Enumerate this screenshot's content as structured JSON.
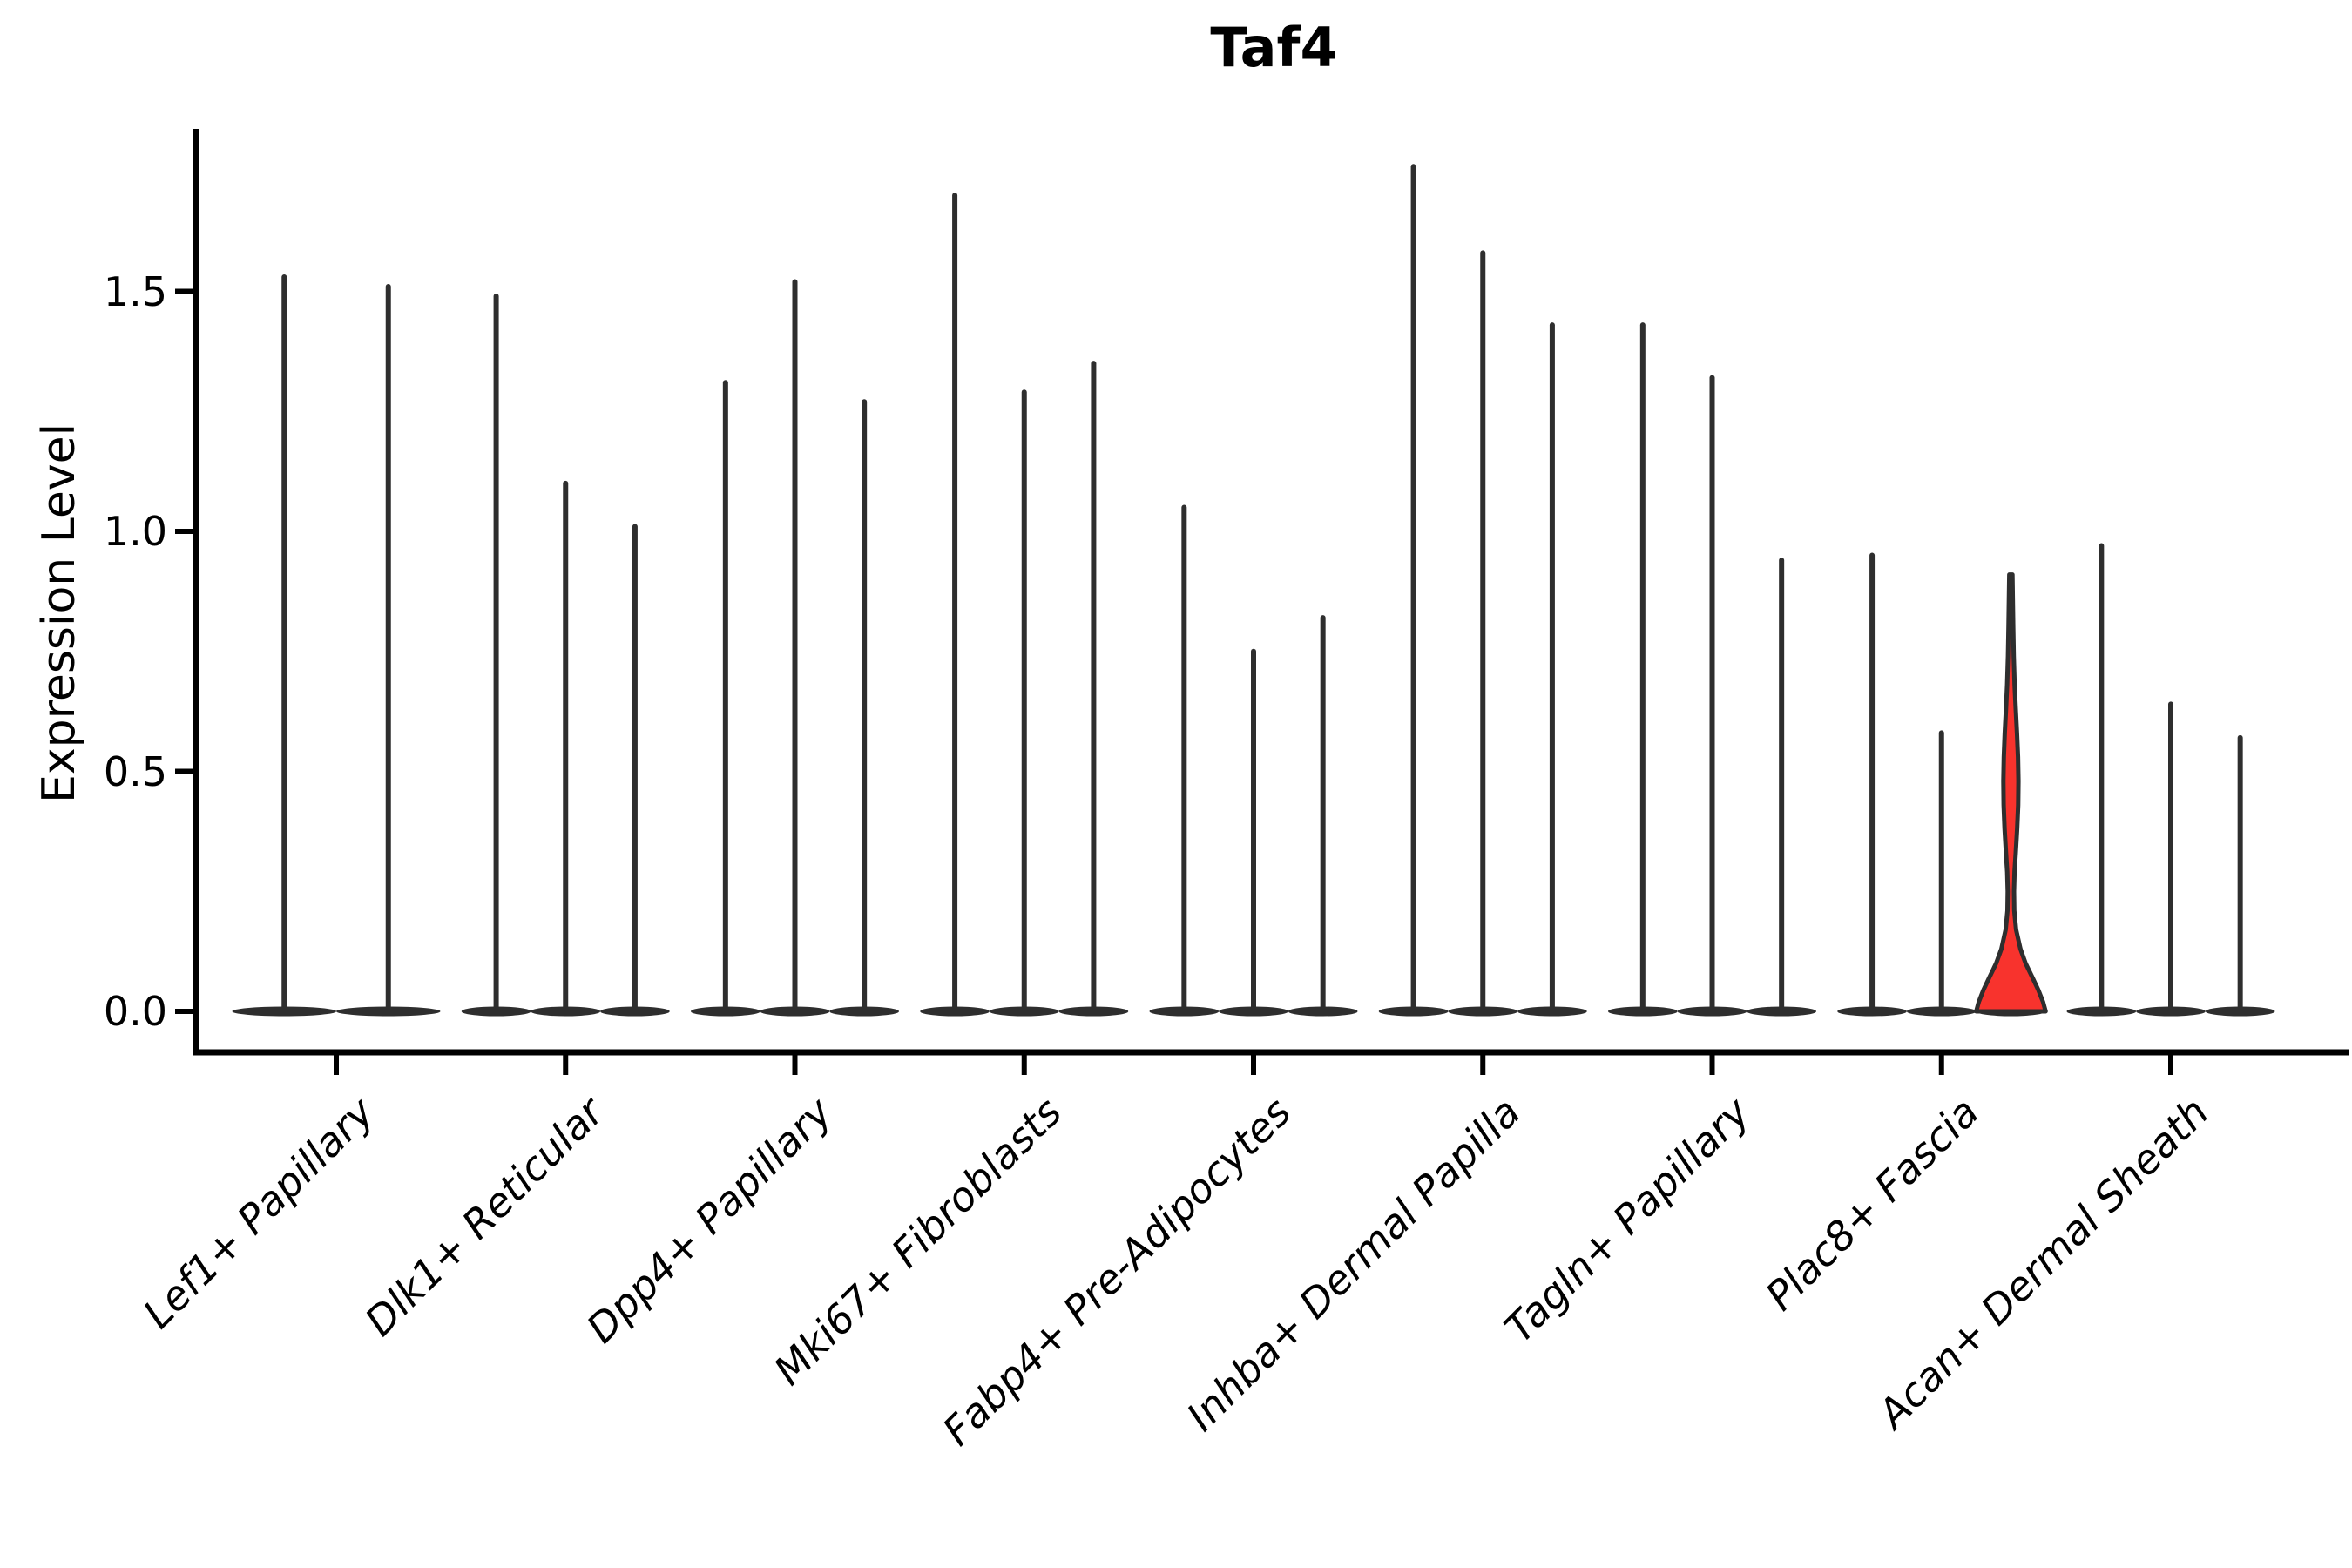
{
  "chart_data": {
    "type": "violin",
    "title": "Taf4",
    "ylabel": "Expression Level",
    "xlabel": "",
    "yticks": [
      {
        "value": 0.0,
        "label": "0.0"
      },
      {
        "value": 0.5,
        "label": "0.5"
      },
      {
        "value": 1.0,
        "label": "1.0"
      },
      {
        "value": 1.5,
        "label": "1.5"
      }
    ],
    "ylim": [
      -0.09,
      1.84
    ],
    "grid": false,
    "legend": "none",
    "colors": {
      "violin_dark": "#2e2e2e",
      "highlight_fill": "#f8332d",
      "axis_black": "#000000"
    },
    "groups": [
      {
        "label": "Lef1+ Papillary",
        "violins": [
          {
            "max": 1.53
          },
          {
            "max": 1.51
          }
        ]
      },
      {
        "label": "Dlk1+ Reticular",
        "violins": [
          {
            "max": 1.49
          },
          {
            "max": 1.1
          },
          {
            "max": 1.01
          }
        ]
      },
      {
        "label": "Dpp4+ Papillary",
        "violins": [
          {
            "max": 1.31
          },
          {
            "max": 1.52
          },
          {
            "max": 1.27
          }
        ]
      },
      {
        "label": "Mki67+ Fibroblasts",
        "violins": [
          {
            "max": 1.7
          },
          {
            "max": 1.29
          },
          {
            "max": 1.35
          }
        ]
      },
      {
        "label": "Fabp4+ Pre-Adipocytes",
        "violins": [
          {
            "max": 1.05
          },
          {
            "max": 0.75
          },
          {
            "max": 0.82
          }
        ]
      },
      {
        "label": "Inhba+ Dermal Papilla",
        "violins": [
          {
            "max": 1.76
          },
          {
            "max": 1.58
          },
          {
            "max": 1.43
          }
        ]
      },
      {
        "label": "Tagln+ Papillary",
        "violins": [
          {
            "max": 1.43
          },
          {
            "max": 1.32
          },
          {
            "max": 0.94
          }
        ]
      },
      {
        "label": "Plac8+ Fascia",
        "violins": [
          {
            "max": 0.95
          },
          {
            "max": 0.58
          },
          {
            "max": 0.91,
            "highlighted": true
          }
        ]
      },
      {
        "label": "Acan+ Dermal Sheath",
        "violins": [
          {
            "max": 0.97
          },
          {
            "max": 0.64
          },
          {
            "max": 0.57
          }
        ]
      }
    ],
    "highlight_profile": [
      [
        0.91,
        1.8
      ],
      [
        0.86,
        2.2
      ],
      [
        0.8,
        2.7
      ],
      [
        0.74,
        3.3
      ],
      [
        0.68,
        4.3
      ],
      [
        0.63,
        5.6
      ],
      [
        0.58,
        7.0
      ],
      [
        0.53,
        8.2
      ],
      [
        0.48,
        8.7
      ],
      [
        0.43,
        8.4
      ],
      [
        0.38,
        7.2
      ],
      [
        0.33,
        5.6
      ],
      [
        0.29,
        4.2
      ],
      [
        0.25,
        3.6
      ],
      [
        0.21,
        3.9
      ],
      [
        0.17,
        6.0
      ],
      [
        0.13,
        11.0
      ],
      [
        0.1,
        17.0
      ],
      [
        0.07,
        25.0
      ],
      [
        0.045,
        31.5
      ],
      [
        0.02,
        37.0
      ],
      [
        0.0,
        40.0
      ]
    ]
  }
}
